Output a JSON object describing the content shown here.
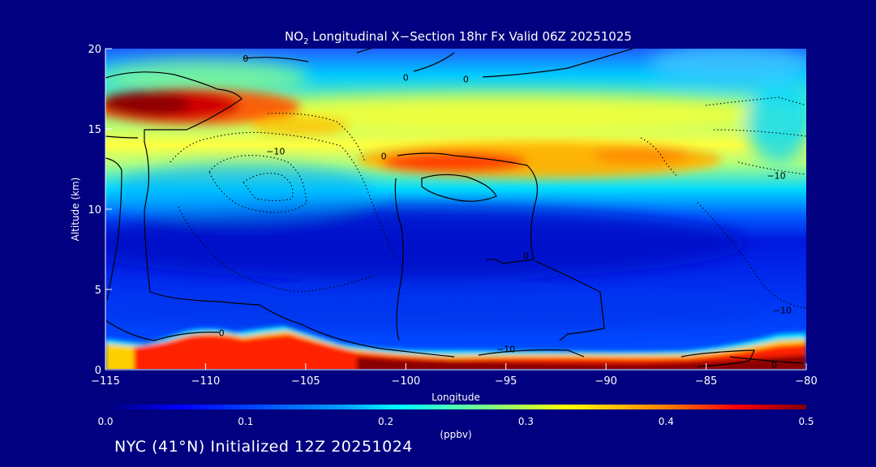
{
  "chart_data": {
    "type": "heatmap",
    "title": "NO",
    "title_sub": "2",
    "title_rest": " Longitudinal X−Section 18hr  Fx Valid 06Z 20251025",
    "xlabel": "Longitude",
    "ylabel": "Altitude (km)",
    "xlim": [
      -115,
      -80
    ],
    "ylim": [
      0,
      20
    ],
    "x_ticks": [
      -115,
      -110,
      -105,
      -100,
      -95,
      -90,
      -85,
      -80
    ],
    "x_tick_labels": [
      "−115",
      "−110",
      "−105",
      "−100",
      "−95",
      "−90",
      "−85",
      "−80"
    ],
    "y_ticks": [
      0,
      5,
      10,
      15,
      20
    ],
    "y_tick_labels": [
      "0",
      "5",
      "10",
      "15",
      "20"
    ],
    "colorbar": {
      "range": [
        0.0,
        0.5
      ],
      "ticks": [
        0.0,
        0.1,
        0.2,
        0.3,
        0.4,
        0.5
      ],
      "tick_labels": [
        "0.0",
        "0.1",
        "0.2",
        "0.3",
        "0.4",
        "0.5"
      ],
      "unit_label": "(ppbv)",
      "colormap": [
        "#00007f",
        "#0000ff",
        "#007fff",
        "#00ffff",
        "#7fff7f",
        "#ffff00",
        "#ff7f00",
        "#ff0000",
        "#7f0000"
      ]
    },
    "contour_labels": [
      {
        "text": "0",
        "lon": -109.2,
        "alt": 2.3
      },
      {
        "text": "0",
        "lon": -108.0,
        "alt": 19.4
      },
      {
        "text": "−10",
        "lon": -106.5,
        "alt": 13.6
      },
      {
        "text": "0",
        "lon": -101.1,
        "alt": 13.3
      },
      {
        "text": "0",
        "lon": -100.0,
        "alt": 18.2
      },
      {
        "text": "0",
        "lon": -97.0,
        "alt": 18.1
      },
      {
        "text": "−10",
        "lon": -95.0,
        "alt": 1.3
      },
      {
        "text": "0",
        "lon": -94.0,
        "alt": 7.1
      },
      {
        "text": "−10",
        "lon": -81.5,
        "alt": 12.1
      },
      {
        "text": "−10",
        "lon": -81.2,
        "alt": 3.7
      },
      {
        "text": "0",
        "lon": -81.6,
        "alt": 0.3
      }
    ],
    "features": [
      {
        "name": "upper-layer-west",
        "lon_range": [
          -115,
          -104
        ],
        "alt": 15.6,
        "value": 0.45
      },
      {
        "name": "upper-layer-central",
        "lon_range": [
          -102,
          -85
        ],
        "alt": 13.0,
        "value": 0.38
      },
      {
        "name": "upper-band",
        "lon_range": [
          -115,
          -80
        ],
        "alt": 15.0,
        "value": 0.28
      },
      {
        "name": "surface-layer-east",
        "lon_range": [
          -98,
          -80
        ],
        "alt": 0.5,
        "value": 0.48
      },
      {
        "name": "surface-layer-west",
        "lon_range": [
          -115,
          -105
        ],
        "alt": 2.3,
        "value": 0.4
      }
    ]
  },
  "footer": "NYC (41°N) Initialized 12Z 20251024"
}
